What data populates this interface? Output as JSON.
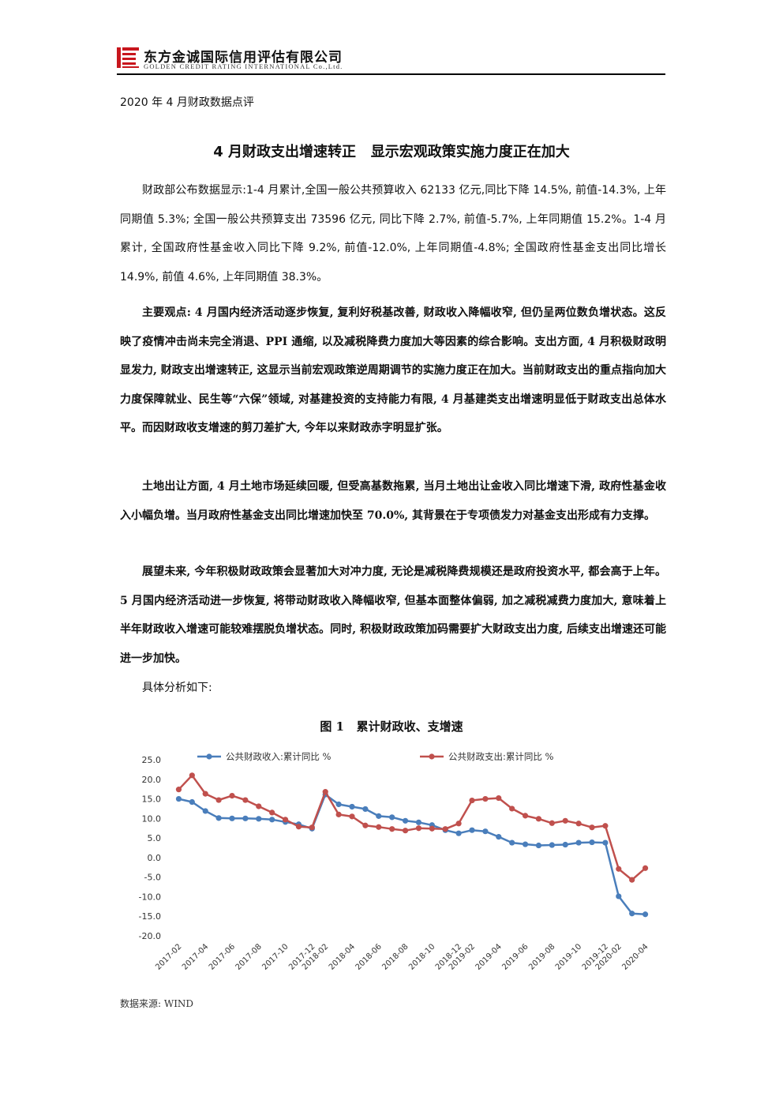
{
  "header": {
    "company_cn": "东方金诚国际信用评估有限公司",
    "company_en": "GOLDEN CREDIT RATING INTERNATIONAL Co.,Ltd.",
    "brand_color": "#c8161d"
  },
  "doc_subtitle": "2020 年 4 月财政数据点评",
  "main_title": "4 月财政支出增速转正   显示宏观政策实施力度正在加大",
  "paragraphs": {
    "intro": "财政部公布数据显示:1-4 月累计,全国一般公共预算收入 62133 亿元,同比下降 14.5%, 前值-14.3%, 上年同期值 5.3%; 全国一般公共预算支出 73596 亿元, 同比下降 2.7%, 前值-5.7%, 上年同期值 15.2%。1-4 月累计, 全国政府性基金收入同比下降 9.2%, 前值-12.0%, 上年同期值-4.8%; 全国政府性基金支出同比增长 14.9%, 前值 4.6%, 上年同期值 38.3%。",
    "views": "主要观点: 4 月国内经济活动逐步恢复, 复利好税基改善, 财政收入降幅收窄, 但仍呈两位数负增状态。这反映了疫情冲击尚未完全消退、PPI 通缩, 以及减税降费力度加大等因素的综合影响。支出方面, 4 月积极财政明显发力, 财政支出增速转正, 这显示当前宏观政策逆周期调节的实施力度正在加大。当前财政支出的重点指向加大力度保障就业、民生等“六保”领域, 对基建投资的支持能力有限, 4 月基建类支出增速明显低于财政支出总体水平。而因财政收支增速的剪刀差扩大, 今年以来财政赤字明显扩张。",
    "land": "土地出让方面, 4 月土地市场延续回暖, 但受高基数拖累, 当月土地出让金收入同比增速下滑, 政府性基金收入小幅负增。当月政府性基金支出同比增速加快至 70.0%, 其背景在于专项债发力对基金支出形成有力支撑。",
    "outlook": "展望未来, 今年积极财政政策会显著加大对冲力度, 无论是减税降费规模还是政府投资水平, 都会高于上年。5 月国内经济活动进一步恢复, 将带动财政收入降幅收窄, 但基本面整体偏弱, 加之减税减费力度加大, 意味着上半年财政收入增速可能较难摆脱负增状态。同时, 积极财政政策加码需要扩大财政支出力度, 后续支出增速还可能进一步加快。",
    "detail": "具体分析如下:"
  },
  "figure_title": "图 1   累计财政收、支增速",
  "source": "数据来源: WIND",
  "chart_data": {
    "type": "line",
    "title": "图 1   累计财政收、支增速",
    "x": [
      "2017-02",
      "2017-03",
      "2017-04",
      "2017-05",
      "2017-06",
      "2017-07",
      "2017-08",
      "2017-09",
      "2017-10",
      "2017-11",
      "2017-12",
      "2018-02",
      "2018-03",
      "2018-04",
      "2018-05",
      "2018-06",
      "2018-07",
      "2018-08",
      "2018-09",
      "2018-10",
      "2018-11",
      "2018-12",
      "2019-02",
      "2019-03",
      "2019-04",
      "2019-05",
      "2019-06",
      "2019-07",
      "2019-08",
      "2019-09",
      "2019-10",
      "2019-11",
      "2019-12",
      "2020-02",
      "2020-03",
      "2020-04"
    ],
    "tick_labels": [
      "2017-02",
      "2017-04",
      "2017-06",
      "2017-08",
      "2017-10",
      "2017-12",
      "2018-02",
      "2018-04",
      "2018-06",
      "2018-08",
      "2018-10",
      "2018-12",
      "2019-02",
      "2019-04",
      "2019-06",
      "2019-08",
      "2019-10",
      "2019-12",
      "2020-02",
      "2020-04"
    ],
    "series": [
      {
        "name": "公共财政收入:累计同比 %",
        "color": "#4a7ebb",
        "values": [
          15.0,
          14.2,
          11.9,
          10.1,
          10.0,
          10.0,
          9.9,
          9.7,
          9.1,
          8.5,
          7.4,
          16.1,
          13.6,
          13.0,
          12.4,
          10.6,
          10.3,
          9.4,
          9.0,
          8.3,
          7.0,
          6.2,
          7.0,
          6.7,
          5.3,
          3.8,
          3.4,
          3.1,
          3.2,
          3.3,
          3.8,
          3.9,
          3.8,
          -9.9,
          -14.3,
          -14.5
        ]
      },
      {
        "name": "公共财政支出:累计同比 %",
        "color": "#c0504d",
        "values": [
          17.4,
          21.0,
          16.3,
          14.7,
          15.8,
          14.7,
          13.1,
          11.5,
          9.7,
          7.9,
          7.7,
          16.8,
          11.0,
          10.5,
          8.2,
          7.8,
          7.3,
          6.9,
          7.5,
          7.4,
          7.3,
          8.7,
          14.6,
          15.0,
          15.2,
          12.5,
          10.7,
          9.9,
          8.8,
          9.4,
          8.7,
          7.7,
          8.1,
          -2.9,
          -5.7,
          -2.7
        ]
      }
    ],
    "ylim": [
      -20,
      25
    ],
    "yticks": [
      "25.0",
      "20.0",
      "15.0",
      "10.0",
      "5.0",
      "0.0",
      "-5.0",
      "-10.0",
      "-15.0",
      "-20.0"
    ],
    "grid": false,
    "legend_position": "top"
  }
}
